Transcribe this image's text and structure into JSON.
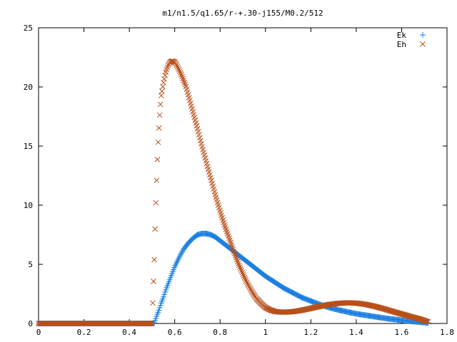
{
  "chart_data": {
    "type": "scatter",
    "title": "m1/n1.5/q1.65/r-+.30-j155/M0.2/512",
    "xlabel": "",
    "ylabel": "",
    "xlim": [
      0,
      1.8
    ],
    "ylim": [
      0,
      25
    ],
    "x_ticks": [
      0,
      0.2,
      0.4,
      0.6,
      0.8,
      1,
      1.2,
      1.4,
      1.6,
      1.8
    ],
    "x_tick_labels": [
      "0",
      "0.2",
      "0.4",
      "0.6",
      "0.8",
      "1",
      "1.2",
      "1.4",
      "1.6",
      "1.8"
    ],
    "y_ticks": [
      0,
      5,
      10,
      15,
      20,
      25
    ],
    "y_tick_labels": [
      "0",
      "5",
      "10",
      "15",
      "20",
      "25"
    ],
    "grid": false,
    "legend_position": "top-right",
    "series": [
      {
        "name": "Ek",
        "marker": "+",
        "color": "#1a7fe0",
        "points": [
          [
            0.0,
            0.0
          ],
          [
            0.1,
            0.0
          ],
          [
            0.2,
            0.0
          ],
          [
            0.3,
            0.0
          ],
          [
            0.4,
            0.0
          ],
          [
            0.5,
            0.0
          ],
          [
            0.51,
            0.05
          ],
          [
            0.52,
            0.6
          ],
          [
            0.53,
            1.1
          ],
          [
            0.54,
            1.7
          ],
          [
            0.55,
            2.2
          ],
          [
            0.56,
            2.8
          ],
          [
            0.57,
            3.3
          ],
          [
            0.58,
            3.8
          ],
          [
            0.59,
            4.3
          ],
          [
            0.6,
            4.8
          ],
          [
            0.62,
            5.6
          ],
          [
            0.64,
            6.3
          ],
          [
            0.66,
            6.8
          ],
          [
            0.68,
            7.2
          ],
          [
            0.7,
            7.5
          ],
          [
            0.72,
            7.6
          ],
          [
            0.74,
            7.6
          ],
          [
            0.76,
            7.5
          ],
          [
            0.78,
            7.3
          ],
          [
            0.8,
            7.0
          ],
          [
            0.82,
            6.7
          ],
          [
            0.84,
            6.4
          ],
          [
            0.86,
            6.1
          ],
          [
            0.88,
            5.8
          ],
          [
            0.9,
            5.5
          ],
          [
            0.92,
            5.2
          ],
          [
            0.94,
            4.9
          ],
          [
            0.96,
            4.6
          ],
          [
            0.98,
            4.3
          ],
          [
            1.0,
            4.0
          ],
          [
            1.04,
            3.5
          ],
          [
            1.08,
            3.0
          ],
          [
            1.12,
            2.6
          ],
          [
            1.16,
            2.2
          ],
          [
            1.2,
            1.9
          ],
          [
            1.24,
            1.6
          ],
          [
            1.28,
            1.35
          ],
          [
            1.32,
            1.15
          ],
          [
            1.36,
            0.98
          ],
          [
            1.4,
            0.82
          ],
          [
            1.44,
            0.7
          ],
          [
            1.48,
            0.58
          ],
          [
            1.52,
            0.46
          ],
          [
            1.56,
            0.36
          ],
          [
            1.6,
            0.27
          ],
          [
            1.64,
            0.19
          ],
          [
            1.68,
            0.12
          ],
          [
            1.7,
            0.08
          ],
          [
            1.72,
            0.05
          ]
        ]
      },
      {
        "name": "Eh",
        "marker": "x",
        "color": "#b8501a",
        "points": [
          [
            0.0,
            0.0
          ],
          [
            0.1,
            0.0
          ],
          [
            0.2,
            0.0
          ],
          [
            0.3,
            0.0
          ],
          [
            0.4,
            0.0
          ],
          [
            0.5,
            0.0
          ],
          [
            0.51,
            5.4
          ],
          [
            0.515,
            9.2
          ],
          [
            0.52,
            12.0
          ],
          [
            0.525,
            14.6
          ],
          [
            0.53,
            16.4
          ],
          [
            0.535,
            18.0
          ],
          [
            0.54,
            19.2
          ],
          [
            0.55,
            20.3
          ],
          [
            0.56,
            21.2
          ],
          [
            0.57,
            21.8
          ],
          [
            0.58,
            22.1
          ],
          [
            0.59,
            22.2
          ],
          [
            0.6,
            22.1
          ],
          [
            0.61,
            21.8
          ],
          [
            0.62,
            21.4
          ],
          [
            0.63,
            21.0
          ],
          [
            0.64,
            20.5
          ],
          [
            0.65,
            20.0
          ],
          [
            0.66,
            19.3
          ],
          [
            0.67,
            18.6
          ],
          [
            0.68,
            17.9
          ],
          [
            0.69,
            17.2
          ],
          [
            0.7,
            16.5
          ],
          [
            0.72,
            15.0
          ],
          [
            0.74,
            13.6
          ],
          [
            0.76,
            12.2
          ],
          [
            0.78,
            10.8
          ],
          [
            0.8,
            9.5
          ],
          [
            0.82,
            8.3
          ],
          [
            0.84,
            7.2
          ],
          [
            0.86,
            6.1
          ],
          [
            0.88,
            5.1
          ],
          [
            0.9,
            4.2
          ],
          [
            0.92,
            3.4
          ],
          [
            0.94,
            2.7
          ],
          [
            0.96,
            2.1
          ],
          [
            0.98,
            1.7
          ],
          [
            1.0,
            1.35
          ],
          [
            1.02,
            1.15
          ],
          [
            1.04,
            1.02
          ],
          [
            1.06,
            0.97
          ],
          [
            1.08,
            0.96
          ],
          [
            1.1,
            0.97
          ],
          [
            1.12,
            1.0
          ],
          [
            1.14,
            1.05
          ],
          [
            1.16,
            1.12
          ],
          [
            1.18,
            1.2
          ],
          [
            1.2,
            1.28
          ],
          [
            1.24,
            1.45
          ],
          [
            1.28,
            1.6
          ],
          [
            1.32,
            1.7
          ],
          [
            1.36,
            1.75
          ],
          [
            1.4,
            1.72
          ],
          [
            1.44,
            1.62
          ],
          [
            1.48,
            1.45
          ],
          [
            1.52,
            1.25
          ],
          [
            1.56,
            1.02
          ],
          [
            1.6,
            0.8
          ],
          [
            1.64,
            0.58
          ],
          [
            1.68,
            0.38
          ],
          [
            1.7,
            0.25
          ],
          [
            1.72,
            0.12
          ]
        ]
      }
    ]
  }
}
